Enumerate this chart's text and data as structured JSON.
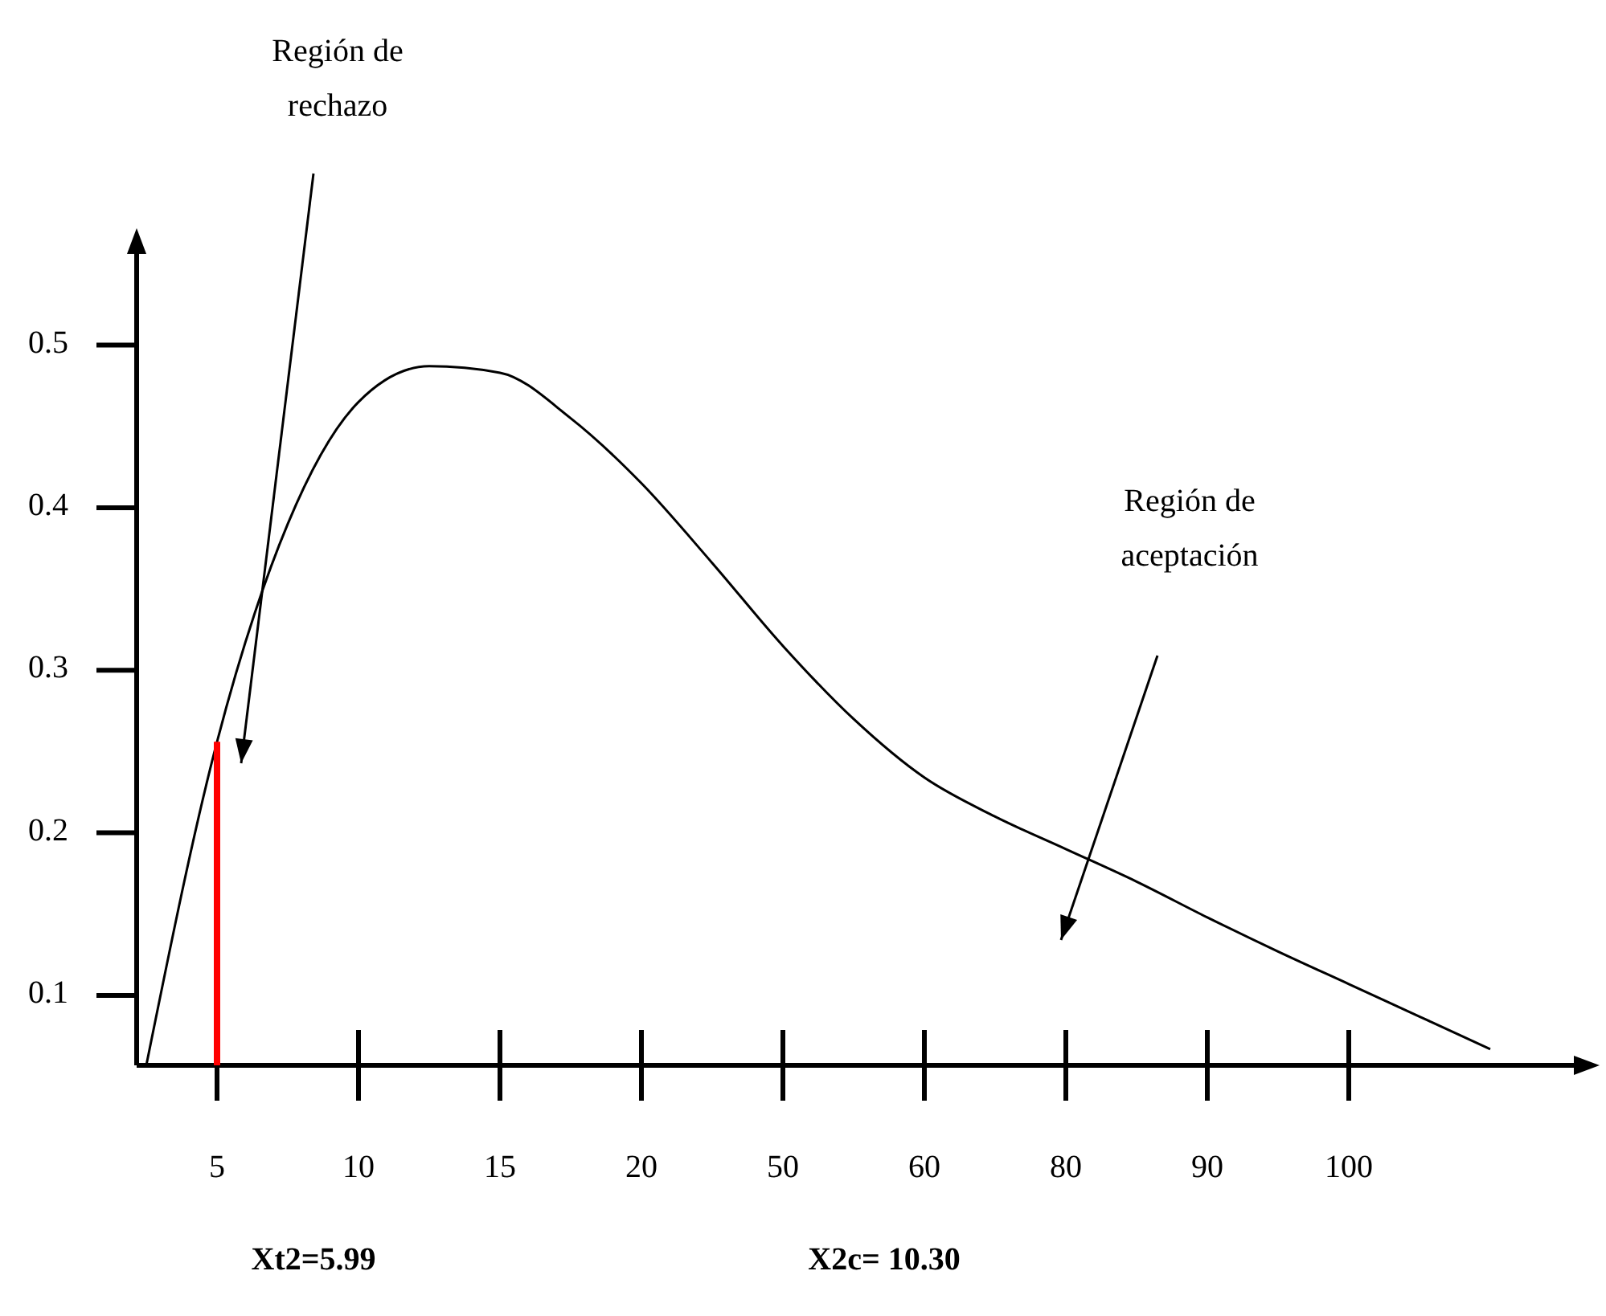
{
  "chart_data": {
    "type": "line",
    "categories": [
      null,
      "5",
      null,
      "10",
      null,
      "15",
      null,
      "20",
      null,
      "50",
      null,
      "60",
      null,
      "80",
      null,
      "90",
      null,
      "100",
      null,
      null
    ],
    "series": [
      {
        "color": "#000000",
        "values": [
          0.057,
          0.256,
          0.39,
          0.465,
          0.487,
          0.483,
          0.455,
          0.415,
          0.366,
          0.315,
          0.27,
          0.234,
          0.21,
          0.19,
          0.17,
          0.148,
          0.127,
          0.107,
          0.087,
          0.067
        ]
      }
    ],
    "ylim": [
      0.057,
      0.564
    ],
    "yticks": [
      0.1,
      0.2,
      0.3,
      0.4,
      0.5
    ],
    "ref_lines": [
      {
        "axis": "x",
        "value": "5",
        "color": "#ff0000"
      }
    ],
    "marker": "none",
    "grid": false,
    "annotations": [
      "Región de rechazo",
      "Región de aceptación",
      "Xt2=5.99",
      "X2c= 10.30"
    ]
  }
}
